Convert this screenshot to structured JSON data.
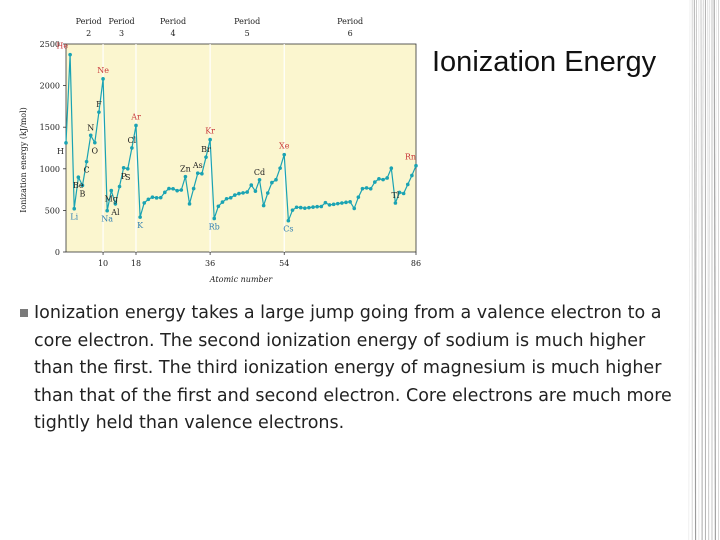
{
  "slide": {
    "title": "Ionization Energy",
    "bullets": [
      "Ionization energy takes a large jump going from a valence electron to a core electron.  The second ionization energy of sodium is much higher than the first.  The third ionization energy of magnesium is much higher than that of the first and second electron.  Core electrons are much more tightly held than valence electrons."
    ],
    "colors": {
      "plot_bg": "#fbf6cf",
      "line": "#1aa3b3",
      "label_red": "#c8383a",
      "label_blue": "#2f7fb2",
      "label_dark": "#222222",
      "bullet": "#7a7a7a"
    }
  },
  "chart_data": {
    "type": "line",
    "xlabel": "Atomic number",
    "ylabel": "Ionization energy (kJ/mol)",
    "xlim": [
      1,
      86
    ],
    "ylim": [
      0,
      2500
    ],
    "yticks": [
      "0",
      "500",
      "1000",
      "1500",
      "2000",
      "2500"
    ],
    "xticks": [
      {
        "value": 10,
        "label": "10"
      },
      {
        "value": 18,
        "label": "18"
      },
      {
        "value": 36,
        "label": "36"
      },
      {
        "value": 54,
        "label": "54"
      },
      {
        "value": 86,
        "label": "86"
      }
    ],
    "periods": [
      {
        "label": "Period",
        "number": "2",
        "at": 6.5
      },
      {
        "label": "Period",
        "number": "3",
        "at": 14.5
      },
      {
        "label": "Period",
        "number": "4",
        "at": 27
      },
      {
        "label": "Period",
        "number": "5",
        "at": 45
      },
      {
        "label": "Period",
        "number": "6",
        "at": 70
      }
    ],
    "period_boundaries": [
      10,
      18,
      36,
      54
    ],
    "x": [
      1,
      2,
      3,
      4,
      5,
      6,
      7,
      8,
      9,
      10,
      11,
      12,
      13,
      14,
      15,
      16,
      17,
      18,
      19,
      20,
      21,
      22,
      23,
      24,
      25,
      26,
      27,
      28,
      29,
      30,
      31,
      32,
      33,
      34,
      35,
      36,
      37,
      38,
      39,
      40,
      41,
      42,
      43,
      44,
      45,
      46,
      47,
      48,
      49,
      50,
      51,
      52,
      53,
      54,
      55,
      56,
      57,
      58,
      59,
      60,
      61,
      62,
      63,
      64,
      65,
      66,
      67,
      68,
      69,
      70,
      71,
      72,
      73,
      74,
      75,
      76,
      77,
      78,
      79,
      80,
      81,
      82,
      83,
      84,
      85,
      86
    ],
    "y": [
      1312,
      2372,
      520,
      899,
      801,
      1086,
      1402,
      1314,
      1681,
      2081,
      496,
      738,
      578,
      787,
      1012,
      1000,
      1251,
      1521,
      419,
      590,
      633,
      659,
      651,
      653,
      717,
      762,
      760,
      737,
      745,
      906,
      579,
      762,
      947,
      941,
      1140,
      1351,
      403,
      550,
      600,
      640,
      652,
      684,
      702,
      710,
      720,
      804,
      731,
      868,
      558,
      709,
      834,
      869,
      1008,
      1170,
      376,
      503,
      538,
      534,
      527,
      533,
      540,
      545,
      547,
      593,
      566,
      573,
      581,
      589,
      597,
      603,
      524,
      659,
      761,
      770,
      760,
      840,
      880,
      870,
      890,
      1007,
      589,
      716,
      703,
      812,
      920,
      1037
    ],
    "series": [
      {
        "values_key": "y"
      }
    ],
    "labels": [
      {
        "text": "He",
        "x": 2,
        "color": "red"
      },
      {
        "text": "Ne",
        "x": 10,
        "color": "red"
      },
      {
        "text": "Ar",
        "x": 18,
        "color": "red"
      },
      {
        "text": "Kr",
        "x": 36,
        "color": "red"
      },
      {
        "text": "Xe",
        "x": 54,
        "color": "red"
      },
      {
        "text": "Rn",
        "x": 86,
        "color": "red"
      },
      {
        "text": "Li",
        "x": 3,
        "color": "blue"
      },
      {
        "text": "Na",
        "x": 11,
        "color": "blue"
      },
      {
        "text": "K",
        "x": 19,
        "color": "blue"
      },
      {
        "text": "Rb",
        "x": 37,
        "color": "blue"
      },
      {
        "text": "Cs",
        "x": 55,
        "color": "blue"
      },
      {
        "text": "H",
        "x": 1,
        "color": "dark"
      },
      {
        "text": "Be",
        "x": 4,
        "color": "dark"
      },
      {
        "text": "B",
        "x": 5,
        "color": "dark"
      },
      {
        "text": "C",
        "x": 6,
        "color": "dark"
      },
      {
        "text": "N",
        "x": 7,
        "color": "dark"
      },
      {
        "text": "O",
        "x": 8,
        "color": "dark"
      },
      {
        "text": "F",
        "x": 9,
        "color": "dark"
      },
      {
        "text": "Mg",
        "x": 12,
        "color": "dark"
      },
      {
        "text": "Al",
        "x": 13,
        "color": "dark"
      },
      {
        "text": "P",
        "x": 15,
        "color": "dark"
      },
      {
        "text": "S",
        "x": 16,
        "color": "dark"
      },
      {
        "text": "Cl",
        "x": 17,
        "color": "dark"
      },
      {
        "text": "Zn",
        "x": 30,
        "color": "dark"
      },
      {
        "text": "As",
        "x": 33,
        "color": "dark"
      },
      {
        "text": "Br",
        "x": 35,
        "color": "dark"
      },
      {
        "text": "Cd",
        "x": 48,
        "color": "dark"
      },
      {
        "text": "Tl",
        "x": 81,
        "color": "dark"
      }
    ],
    "grid": false,
    "legend": "none"
  }
}
